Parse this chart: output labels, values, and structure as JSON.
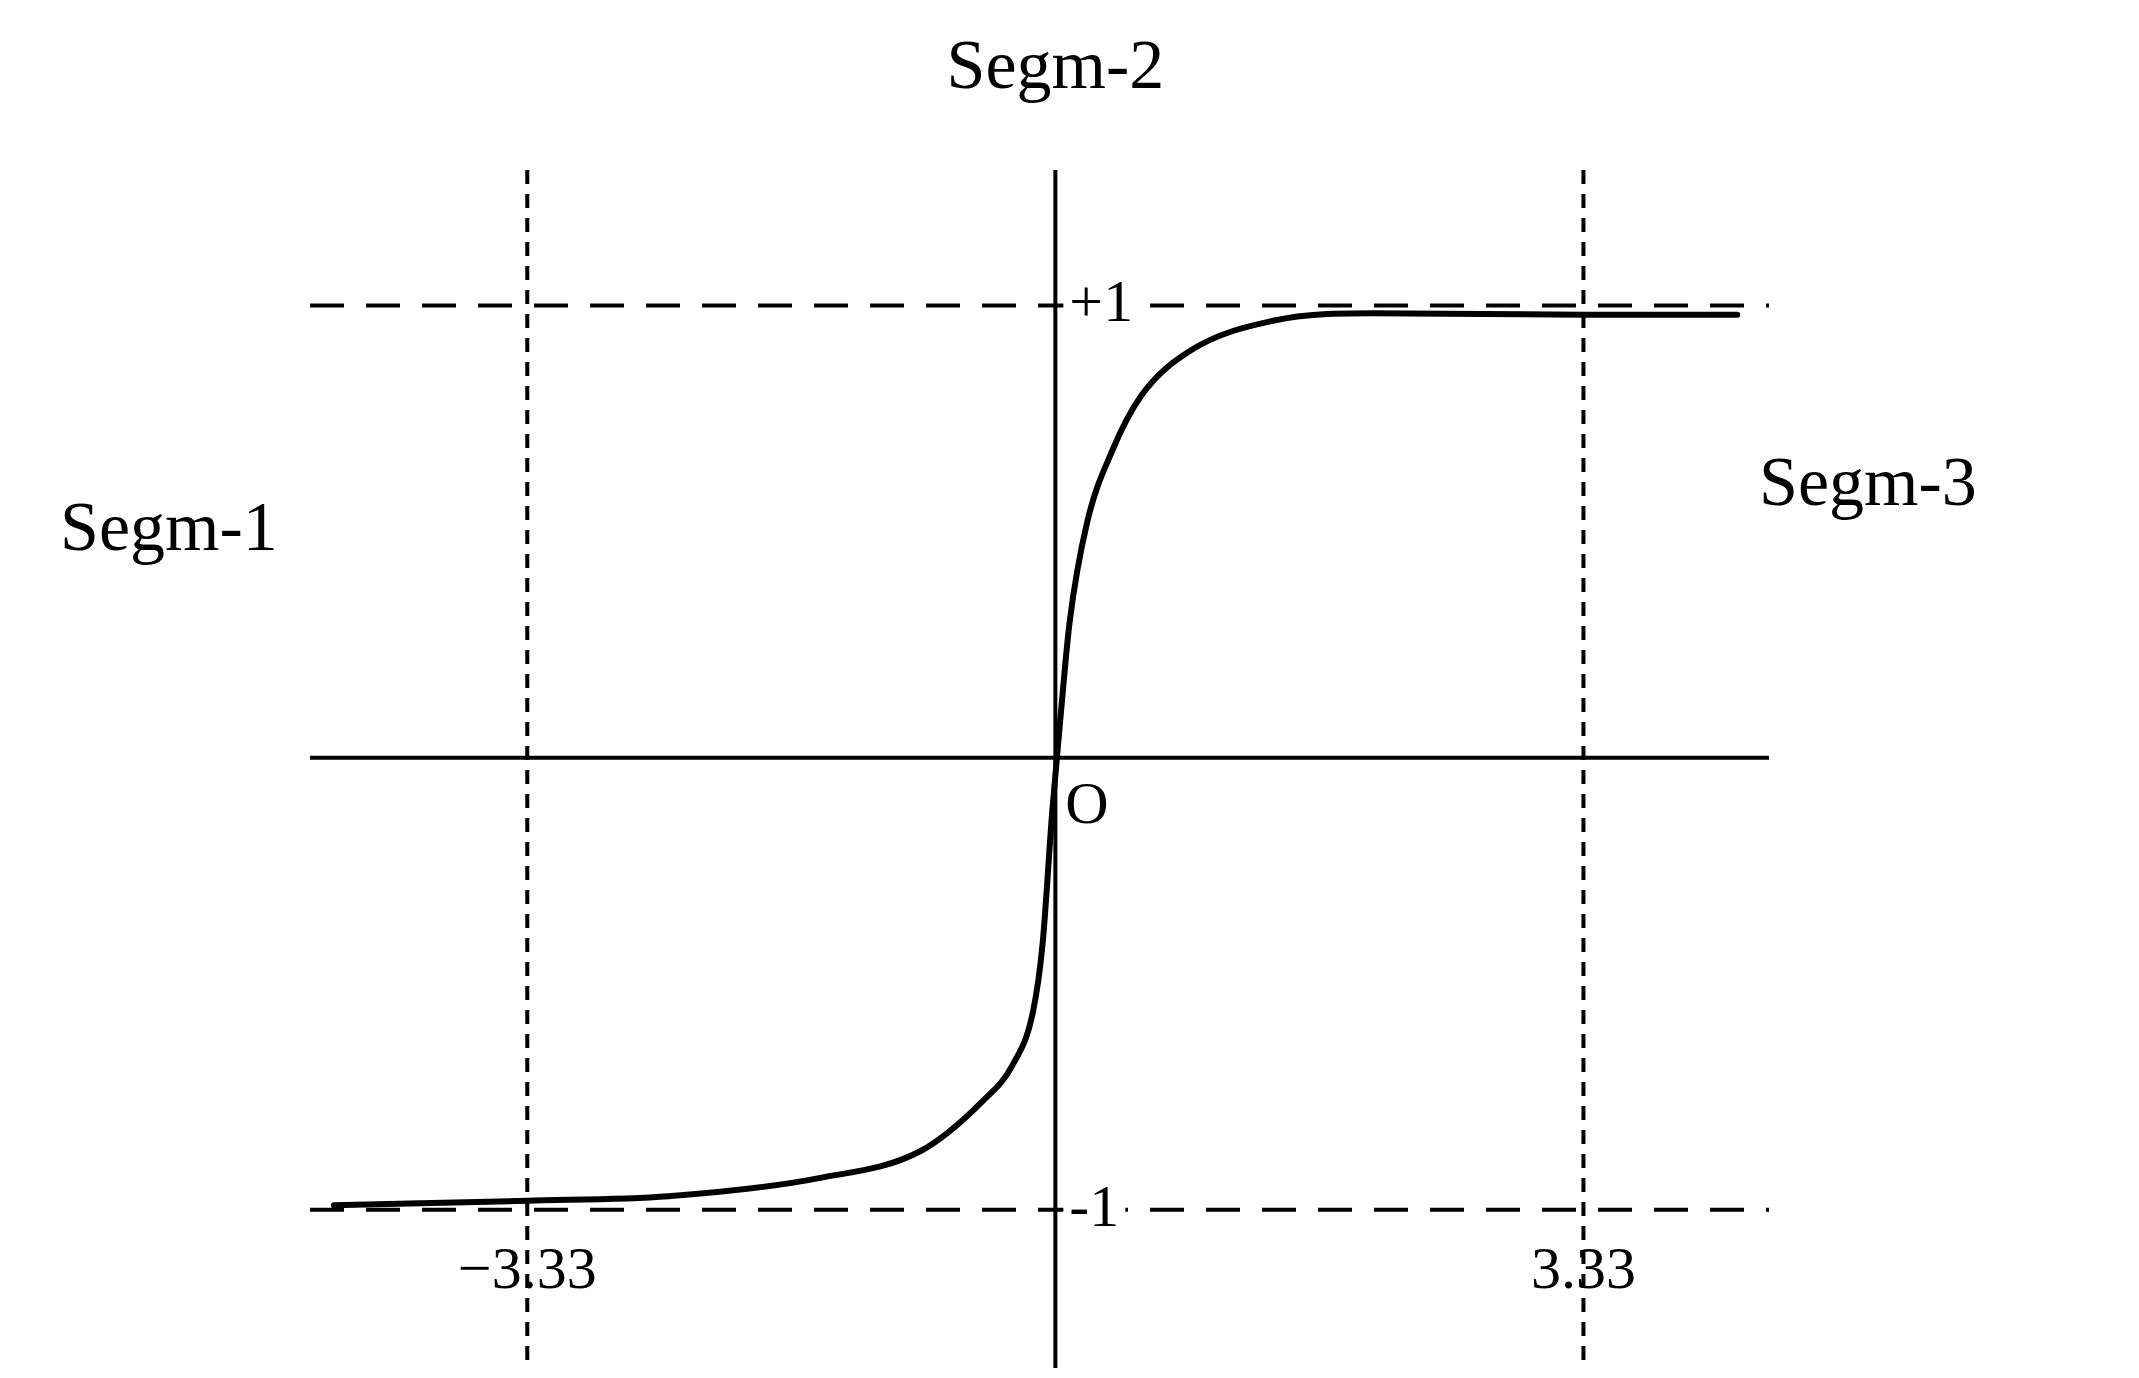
{
  "chart_data": {
    "type": "line",
    "annotations": [
      "Segm-1",
      "Segm-2",
      "Segm-3",
      {
        "text": "O",
        "x": 0,
        "y": 0
      }
    ],
    "xlim": [
      -4.7,
      4.5
    ],
    "ylim": [
      -1.35,
      1.3
    ],
    "xticks": [
      {
        "value": -3.33,
        "label": "−3.33"
      },
      {
        "value": 3.33,
        "label": "3.33"
      }
    ],
    "yticks": [
      {
        "value": 1,
        "label": "+1"
      },
      {
        "value": -1,
        "label": "-1"
      }
    ],
    "series": [
      {
        "color": "#000000",
        "x": [
          -4.55,
          -3.33,
          -2.44,
          -1.49,
          -0.85,
          -0.46,
          -0.27,
          -0.14,
          -0.08,
          -0.02,
          0.03,
          0.09,
          0.2,
          0.36,
          0.54,
          0.85,
          1.38,
          2.0,
          3.33,
          4.3
        ],
        "values": [
          -0.99,
          -0.98,
          -0.97,
          -0.93,
          -0.87,
          -0.76,
          -0.68,
          -0.56,
          -0.41,
          -0.12,
          0.08,
          0.3,
          0.52,
          0.68,
          0.8,
          0.9,
          0.967,
          0.983,
          0.98,
          0.98
        ]
      }
    ],
    "ref_lines": [
      {
        "axis": "x",
        "value": -3.33,
        "line_style": "dotted"
      },
      {
        "axis": "x",
        "value": 3.33,
        "line_style": "dotted"
      },
      {
        "axis": "y",
        "value": 0,
        "line_style": "solid"
      },
      {
        "axis": "y",
        "value": 1,
        "line_style": "dashed"
      },
      {
        "axis": "y",
        "value": -1,
        "line_style": "dashed"
      }
    ],
    "marker": "none",
    "line_style": "solid"
  }
}
